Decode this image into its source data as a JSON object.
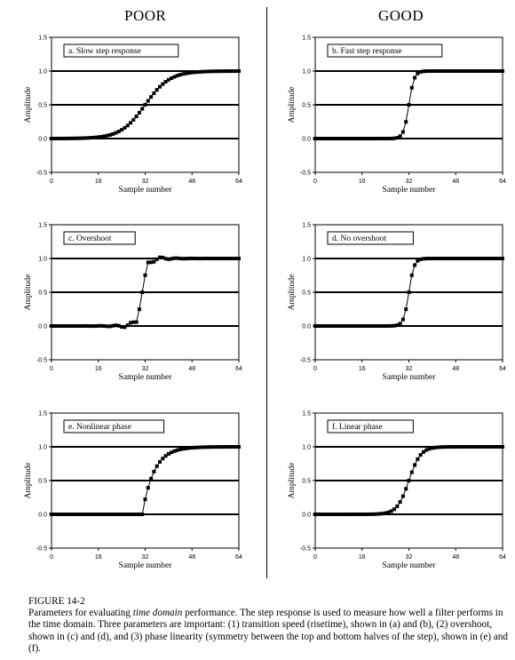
{
  "headers": {
    "left": "POOR",
    "right": "GOOD"
  },
  "caption": {
    "title": "FIGURE 14-2",
    "text_before": "Parameters for evaluating ",
    "text_emph": "time domain",
    "text_after": " performance.   The step response is used to measure how well a filter performs in the time domain.  Three parameters are important: (1) transition speed (risetime), shown in (a) and (b), (2) overshoot, shown in (c) and (d), and (3) phase linearity (symmetry between the top and bottom halves of the step), shown in (e) and (f)."
  },
  "chart_data": [
    {
      "id": "a",
      "type": "line",
      "label": "a.  Slow step response",
      "xlabel": "Sample number",
      "ylabel": "Amplitude",
      "xlim": [
        0,
        64
      ],
      "ylim": [
        -0.5,
        1.5
      ],
      "xticks": [
        0,
        16,
        32,
        48,
        64
      ],
      "yticks": [
        -0.5,
        0.0,
        0.5,
        1.0,
        1.5
      ],
      "ytick_labels": [
        "-0.5",
        "0.0",
        "0.5",
        "1.0",
        "1.5"
      ],
      "gridlines_y": [
        0.0,
        0.5,
        1.0
      ],
      "model": "logistic",
      "center": 32,
      "scale": 4.2
    },
    {
      "id": "b",
      "type": "line",
      "label": "b.  Fast step response",
      "xlabel": "Sample number",
      "ylabel": "Amplitude",
      "xlim": [
        0,
        64
      ],
      "ylim": [
        -0.5,
        1.5
      ],
      "xticks": [
        0,
        16,
        32,
        48,
        64
      ],
      "yticks": [
        -0.5,
        0.0,
        0.5,
        1.0,
        1.5
      ],
      "ytick_labels": [
        "-0.5",
        "0.0",
        "0.5",
        "1.0",
        "1.5"
      ],
      "gridlines_y": [
        0.0,
        0.5,
        1.0
      ],
      "model": "logistic",
      "center": 32,
      "scale": 0.9
    },
    {
      "id": "c",
      "type": "line",
      "label": "c.  Overshoot",
      "xlabel": "Sample number",
      "ylabel": "Amplitude",
      "xlim": [
        0,
        64
      ],
      "ylim": [
        -0.5,
        1.5
      ],
      "xticks": [
        0,
        16,
        32,
        48,
        64
      ],
      "yticks": [
        -0.5,
        0.0,
        0.5,
        1.0,
        1.5
      ],
      "ytick_labels": [
        "-0.5",
        "0.0",
        "0.5",
        "1.0",
        "1.5"
      ],
      "gridlines_y": [
        0.0,
        0.5,
        1.0
      ],
      "model": "overshoot",
      "center": 31,
      "scale": 0.9
    },
    {
      "id": "d",
      "type": "line",
      "label": "d.  No overshoot",
      "xlabel": "Sample number",
      "ylabel": "Amplitude",
      "xlim": [
        0,
        64
      ],
      "ylim": [
        -0.5,
        1.5
      ],
      "xticks": [
        0,
        16,
        32,
        48,
        64
      ],
      "yticks": [
        -0.5,
        0.0,
        0.5,
        1.0,
        1.5
      ],
      "ytick_labels": [
        "-0.5",
        "0.0",
        "0.5",
        "1.0",
        "1.5"
      ],
      "gridlines_y": [
        0.0,
        0.5,
        1.0
      ],
      "model": "logistic",
      "center": 32,
      "scale": 0.9
    },
    {
      "id": "e",
      "type": "line",
      "label": "e.  Nonlinear phase",
      "xlabel": "Sample number",
      "ylabel": "Amplitude",
      "xlim": [
        0,
        64
      ],
      "ylim": [
        -0.5,
        1.5
      ],
      "xticks": [
        0,
        16,
        32,
        48,
        64
      ],
      "yticks": [
        -0.5,
        0.0,
        0.5,
        1.0,
        1.5
      ],
      "ytick_labels": [
        "-0.5",
        "0.0",
        "0.5",
        "1.0",
        "1.5"
      ],
      "gridlines_y": [
        0.0,
        0.5,
        1.0
      ],
      "model": "exp_rise",
      "center": 31,
      "scale": 4.0
    },
    {
      "id": "f",
      "type": "line",
      "label": "f.  Linear phase",
      "xlabel": "Sample number",
      "ylabel": "Amplitude",
      "xlim": [
        0,
        64
      ],
      "ylim": [
        -0.5,
        1.5
      ],
      "xticks": [
        0,
        16,
        32,
        48,
        64
      ],
      "yticks": [
        -0.5,
        0.0,
        0.5,
        1.0,
        1.5
      ],
      "ytick_labels": [
        "-0.5",
        "0.0",
        "0.5",
        "1.0",
        "1.5"
      ],
      "gridlines_y": [
        0.0,
        0.5,
        1.0
      ],
      "model": "logistic",
      "center": 32,
      "scale": 2.0
    }
  ]
}
